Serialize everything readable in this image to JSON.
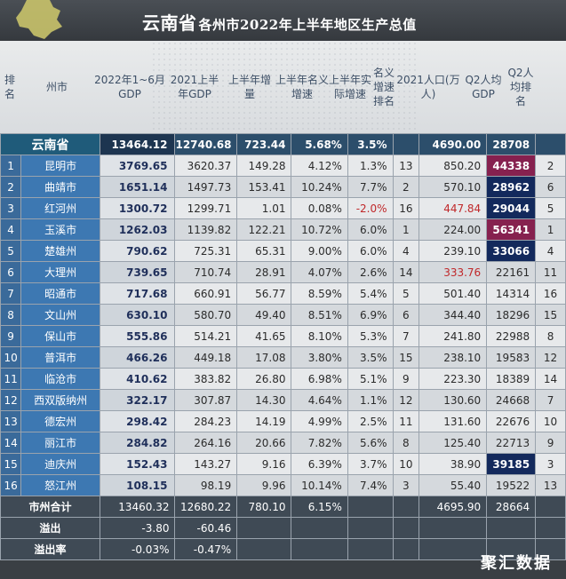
{
  "title": {
    "province": "云南省",
    "rest": "各州市2022年上半年地区生产总值"
  },
  "headers": [
    "排名",
    "州市",
    "2022年1~6月GDP",
    "2021上半年GDP",
    "上半年增量",
    "上半年名义增速",
    "上半年实际增速",
    "名义增速排名",
    "2021人口(万人)",
    "Q2人均GDP",
    "Q2人均排名"
  ],
  "province_row": {
    "name": "云南省",
    "gdp2022": "13464.12",
    "gdp2021": "12740.68",
    "increase": "723.44",
    "nominal": "5.68%",
    "real": "3.5%",
    "pop": "4690.00",
    "pergdp": "28708"
  },
  "rows": [
    {
      "rank": "1",
      "city": "昆明市",
      "gdp2022": "3769.65",
      "gdp2021": "3620.37",
      "increase": "149.28",
      "nominal": "4.12%",
      "real": "1.3%",
      "nrank": "13",
      "pop": "850.20",
      "pergdp": "44338",
      "prank": "2",
      "pergdp_style": "mag"
    },
    {
      "rank": "2",
      "city": "曲靖市",
      "gdp2022": "1651.14",
      "gdp2021": "1497.73",
      "increase": "153.41",
      "nominal": "10.24%",
      "real": "7.7%",
      "nrank": "2",
      "pop": "570.10",
      "pergdp": "28962",
      "prank": "6",
      "pergdp_style": "dark"
    },
    {
      "rank": "3",
      "city": "红河州",
      "gdp2022": "1300.72",
      "gdp2021": "1299.71",
      "increase": "1.01",
      "nominal": "0.08%",
      "real": "-2.0%",
      "nrank": "16",
      "pop": "447.84",
      "pergdp": "29044",
      "prank": "5",
      "pergdp_style": "dark",
      "real_red": true,
      "pop_red": true
    },
    {
      "rank": "4",
      "city": "玉溪市",
      "gdp2022": "1262.03",
      "gdp2021": "1139.82",
      "increase": "122.21",
      "nominal": "10.72%",
      "real": "6.0%",
      "nrank": "1",
      "pop": "224.00",
      "pergdp": "56341",
      "prank": "1",
      "pergdp_style": "mag"
    },
    {
      "rank": "5",
      "city": "楚雄州",
      "gdp2022": "790.62",
      "gdp2021": "725.31",
      "increase": "65.31",
      "nominal": "9.00%",
      "real": "6.0%",
      "nrank": "4",
      "pop": "239.10",
      "pergdp": "33066",
      "prank": "4",
      "pergdp_style": "dark"
    },
    {
      "rank": "6",
      "city": "大理州",
      "gdp2022": "739.65",
      "gdp2021": "710.74",
      "increase": "28.91",
      "nominal": "4.07%",
      "real": "2.6%",
      "nrank": "14",
      "pop": "333.76",
      "pergdp": "22161",
      "prank": "11",
      "pop_red": true
    },
    {
      "rank": "7",
      "city": "昭通市",
      "gdp2022": "717.68",
      "gdp2021": "660.91",
      "increase": "56.77",
      "nominal": "8.59%",
      "real": "5.4%",
      "nrank": "5",
      "pop": "501.40",
      "pergdp": "14314",
      "prank": "16"
    },
    {
      "rank": "8",
      "city": "文山州",
      "gdp2022": "630.10",
      "gdp2021": "580.70",
      "increase": "49.40",
      "nominal": "8.51%",
      "real": "6.9%",
      "nrank": "6",
      "pop": "344.40",
      "pergdp": "18296",
      "prank": "15"
    },
    {
      "rank": "9",
      "city": "保山市",
      "gdp2022": "555.86",
      "gdp2021": "514.21",
      "increase": "41.65",
      "nominal": "8.10%",
      "real": "5.3%",
      "nrank": "7",
      "pop": "241.80",
      "pergdp": "22988",
      "prank": "8"
    },
    {
      "rank": "10",
      "city": "普洱市",
      "gdp2022": "466.26",
      "gdp2021": "449.18",
      "increase": "17.08",
      "nominal": "3.80%",
      "real": "3.5%",
      "nrank": "15",
      "pop": "238.10",
      "pergdp": "19583",
      "prank": "12"
    },
    {
      "rank": "11",
      "city": "临沧市",
      "gdp2022": "410.62",
      "gdp2021": "383.82",
      "increase": "26.80",
      "nominal": "6.98%",
      "real": "5.1%",
      "nrank": "9",
      "pop": "223.30",
      "pergdp": "18389",
      "prank": "14"
    },
    {
      "rank": "12",
      "city": "西双版纳州",
      "gdp2022": "322.17",
      "gdp2021": "307.87",
      "increase": "14.30",
      "nominal": "4.64%",
      "real": "1.1%",
      "nrank": "12",
      "pop": "130.60",
      "pergdp": "24668",
      "prank": "7"
    },
    {
      "rank": "13",
      "city": "德宏州",
      "gdp2022": "298.42",
      "gdp2021": "284.23",
      "increase": "14.19",
      "nominal": "4.99%",
      "real": "2.5%",
      "nrank": "11",
      "pop": "131.60",
      "pergdp": "22676",
      "prank": "10"
    },
    {
      "rank": "14",
      "city": "丽江市",
      "gdp2022": "284.82",
      "gdp2021": "264.16",
      "increase": "20.66",
      "nominal": "7.82%",
      "real": "5.6%",
      "nrank": "8",
      "pop": "125.40",
      "pergdp": "22713",
      "prank": "9"
    },
    {
      "rank": "15",
      "city": "迪庆州",
      "gdp2022": "152.43",
      "gdp2021": "143.27",
      "increase": "9.16",
      "nominal": "6.39%",
      "real": "3.7%",
      "nrank": "10",
      "pop": "38.90",
      "pergdp": "39185",
      "prank": "3",
      "pergdp_style": "dark"
    },
    {
      "rank": "16",
      "city": "怒江州",
      "gdp2022": "108.15",
      "gdp2021": "98.19",
      "increase": "9.96",
      "nominal": "10.14%",
      "real": "7.4%",
      "nrank": "3",
      "pop": "55.40",
      "pergdp": "19522",
      "prank": "13"
    }
  ],
  "footer": {
    "total": {
      "label": "市州合计",
      "gdp2022": "13460.32",
      "gdp2021": "12680.22",
      "increase": "780.10",
      "nominal": "6.15%",
      "pop": "4695.90",
      "pergdp": "28664"
    },
    "overflow": {
      "label": "溢出",
      "gdp2022": "-3.80",
      "gdp2021": "-60.46"
    },
    "overflow_rate": {
      "label": "溢出率",
      "gdp2022": "-0.03%",
      "gdp2021": "-0.47%"
    }
  },
  "watermark": "聚汇数据",
  "colors": {
    "city_blue": "#3d78b2",
    "dark_navy": "#13295c",
    "magenta": "#86214f",
    "red_text": "#c0282a"
  }
}
